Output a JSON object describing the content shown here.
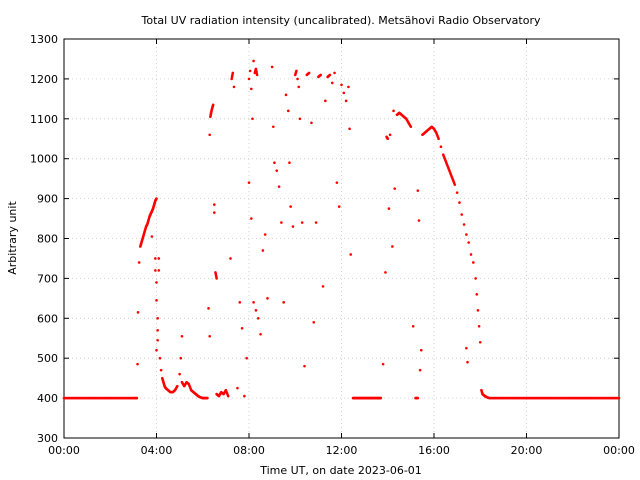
{
  "chart_data": {
    "type": "scatter",
    "title": "Total UV radiation intensity (uncalibrated). Metsähovi Radio Observatory",
    "xlabel": "Time UT, on date 2023-06-01",
    "ylabel": "Arbitrary unit",
    "xlim": [
      0,
      24
    ],
    "ylim": [
      300,
      1300
    ],
    "x_ticks": [
      0,
      4,
      8,
      12,
      16,
      20,
      24
    ],
    "x_tick_labels": [
      "00:00",
      "04:00",
      "08:00",
      "12:00",
      "16:00",
      "20:00",
      "00:00"
    ],
    "y_ticks": [
      300,
      400,
      500,
      600,
      700,
      800,
      900,
      1000,
      1100,
      1200,
      1300
    ],
    "grid": true,
    "marker_color": "#ff0000",
    "series": [
      {
        "name": "",
        "points": [
          [
            0.0,
            400
          ],
          [
            0.2,
            400
          ],
          [
            0.4,
            400
          ],
          [
            0.6,
            400
          ],
          [
            0.8,
            400
          ],
          [
            1.0,
            400
          ],
          [
            1.2,
            400
          ],
          [
            1.4,
            400
          ],
          [
            1.6,
            400
          ],
          [
            1.8,
            400
          ],
          [
            2.0,
            400
          ],
          [
            2.2,
            400
          ],
          [
            2.4,
            400
          ],
          [
            2.6,
            400
          ],
          [
            2.8,
            400
          ],
          [
            3.0,
            400
          ],
          [
            3.15,
            400
          ],
          [
            3.18,
            485
          ],
          [
            3.2,
            615
          ],
          [
            3.25,
            740
          ],
          [
            3.3,
            780
          ],
          [
            3.35,
            790
          ],
          [
            3.4,
            800
          ],
          [
            3.45,
            810
          ],
          [
            3.5,
            820
          ],
          [
            3.55,
            830
          ],
          [
            3.6,
            835
          ],
          [
            3.65,
            845
          ],
          [
            3.7,
            855
          ],
          [
            3.75,
            862
          ],
          [
            3.8,
            868
          ],
          [
            3.85,
            875
          ],
          [
            3.9,
            885
          ],
          [
            3.95,
            895
          ],
          [
            4.0,
            900
          ],
          [
            3.8,
            805
          ],
          [
            3.95,
            750
          ],
          [
            3.95,
            720
          ],
          [
            4.0,
            690
          ],
          [
            4.0,
            645
          ],
          [
            4.05,
            600
          ],
          [
            4.05,
            570
          ],
          [
            4.05,
            545
          ],
          [
            4.0,
            520
          ],
          [
            4.1,
            750
          ],
          [
            4.1,
            720
          ],
          [
            4.15,
            500
          ],
          [
            4.2,
            470
          ],
          [
            4.25,
            450
          ],
          [
            4.3,
            440
          ],
          [
            4.35,
            430
          ],
          [
            4.4,
            425
          ],
          [
            4.5,
            420
          ],
          [
            4.6,
            415
          ],
          [
            4.7,
            415
          ],
          [
            4.8,
            420
          ],
          [
            4.9,
            430
          ],
          [
            5.0,
            460
          ],
          [
            5.05,
            500
          ],
          [
            5.1,
            555
          ],
          [
            5.1,
            440
          ],
          [
            5.2,
            430
          ],
          [
            5.3,
            440
          ],
          [
            5.4,
            435
          ],
          [
            5.5,
            420
          ],
          [
            5.6,
            415
          ],
          [
            5.7,
            410
          ],
          [
            5.8,
            405
          ],
          [
            5.9,
            402
          ],
          [
            6.0,
            400
          ],
          [
            6.1,
            400
          ],
          [
            6.2,
            400
          ],
          [
            6.25,
            625
          ],
          [
            6.3,
            555
          ],
          [
            6.3,
            1060
          ],
          [
            6.33,
            1105
          ],
          [
            6.36,
            1115
          ],
          [
            6.4,
            1125
          ],
          [
            6.45,
            1135
          ],
          [
            6.5,
            885
          ],
          [
            6.5,
            865
          ],
          [
            6.55,
            715
          ],
          [
            6.6,
            700
          ],
          [
            6.6,
            410
          ],
          [
            6.7,
            405
          ],
          [
            6.8,
            415
          ],
          [
            6.9,
            410
          ],
          [
            7.0,
            420
          ],
          [
            7.1,
            405
          ],
          [
            7.2,
            750
          ],
          [
            7.25,
            1200
          ],
          [
            7.3,
            1215
          ],
          [
            7.35,
            1180
          ],
          [
            7.5,
            425
          ],
          [
            7.6,
            640
          ],
          [
            7.7,
            575
          ],
          [
            7.8,
            405
          ],
          [
            7.9,
            500
          ],
          [
            8.0,
            1200
          ],
          [
            8.05,
            1220
          ],
          [
            8.1,
            1175
          ],
          [
            8.15,
            1100
          ],
          [
            8.2,
            1245
          ],
          [
            8.25,
            1215
          ],
          [
            8.3,
            1225
          ],
          [
            8.35,
            1210
          ],
          [
            8.0,
            940
          ],
          [
            8.1,
            850
          ],
          [
            8.2,
            640
          ],
          [
            8.3,
            620
          ],
          [
            8.4,
            600
          ],
          [
            8.5,
            560
          ],
          [
            8.6,
            770
          ],
          [
            8.7,
            810
          ],
          [
            8.8,
            650
          ],
          [
            9.0,
            1230
          ],
          [
            9.05,
            1080
          ],
          [
            9.1,
            990
          ],
          [
            9.2,
            970
          ],
          [
            9.3,
            930
          ],
          [
            9.4,
            840
          ],
          [
            9.5,
            640
          ],
          [
            9.6,
            1160
          ],
          [
            9.7,
            1120
          ],
          [
            9.75,
            990
          ],
          [
            9.8,
            880
          ],
          [
            9.9,
            830
          ],
          [
            10.0,
            1210
          ],
          [
            10.05,
            1220
          ],
          [
            10.1,
            1200
          ],
          [
            10.15,
            1180
          ],
          [
            10.2,
            1100
          ],
          [
            10.3,
            840
          ],
          [
            10.4,
            480
          ],
          [
            10.5,
            1210
          ],
          [
            10.6,
            1215
          ],
          [
            10.7,
            1090
          ],
          [
            10.8,
            590
          ],
          [
            10.9,
            840
          ],
          [
            11.0,
            1205
          ],
          [
            11.1,
            1210
          ],
          [
            11.2,
            680
          ],
          [
            11.3,
            1145
          ],
          [
            11.4,
            1205
          ],
          [
            11.5,
            1210
          ],
          [
            11.6,
            1190
          ],
          [
            11.7,
            1215
          ],
          [
            11.8,
            940
          ],
          [
            11.9,
            880
          ],
          [
            12.0,
            1185
          ],
          [
            12.1,
            1165
          ],
          [
            12.2,
            1145
          ],
          [
            12.3,
            1180
          ],
          [
            12.35,
            1075
          ],
          [
            12.4,
            760
          ],
          [
            12.5,
            400
          ],
          [
            12.6,
            400
          ],
          [
            12.7,
            400
          ],
          [
            12.8,
            400
          ],
          [
            12.9,
            400
          ],
          [
            13.0,
            400
          ],
          [
            13.1,
            400
          ],
          [
            13.2,
            400
          ],
          [
            13.3,
            400
          ],
          [
            13.4,
            400
          ],
          [
            13.5,
            400
          ],
          [
            13.6,
            400
          ],
          [
            13.7,
            400
          ],
          [
            13.8,
            485
          ],
          [
            13.9,
            715
          ],
          [
            13.95,
            1055
          ],
          [
            14.0,
            1050
          ],
          [
            14.05,
            875
          ],
          [
            14.1,
            1060
          ],
          [
            14.2,
            780
          ],
          [
            14.25,
            1120
          ],
          [
            14.3,
            925
          ],
          [
            14.4,
            1110
          ],
          [
            14.5,
            1115
          ],
          [
            14.6,
            1110
          ],
          [
            14.7,
            1105
          ],
          [
            14.8,
            1100
          ],
          [
            14.9,
            1090
          ],
          [
            15.0,
            1080
          ],
          [
            15.1,
            580
          ],
          [
            15.3,
            920
          ],
          [
            15.35,
            845
          ],
          [
            15.4,
            470
          ],
          [
            15.45,
            520
          ],
          [
            15.2,
            400
          ],
          [
            15.3,
            400
          ],
          [
            15.5,
            1060
          ],
          [
            15.6,
            1065
          ],
          [
            15.7,
            1070
          ],
          [
            15.8,
            1075
          ],
          [
            15.9,
            1080
          ],
          [
            16.0,
            1075
          ],
          [
            16.1,
            1065
          ],
          [
            16.2,
            1050
          ],
          [
            16.3,
            1030
          ],
          [
            16.4,
            1010
          ],
          [
            16.5,
            995
          ],
          [
            16.6,
            980
          ],
          [
            16.7,
            965
          ],
          [
            16.8,
            950
          ],
          [
            16.9,
            935
          ],
          [
            17.0,
            915
          ],
          [
            17.1,
            890
          ],
          [
            17.2,
            860
          ],
          [
            17.3,
            835
          ],
          [
            17.4,
            810
          ],
          [
            17.5,
            790
          ],
          [
            17.6,
            760
          ],
          [
            17.7,
            740
          ],
          [
            17.8,
            700
          ],
          [
            17.85,
            660
          ],
          [
            17.9,
            620
          ],
          [
            17.95,
            580
          ],
          [
            18.0,
            540
          ],
          [
            17.4,
            525
          ],
          [
            17.45,
            490
          ],
          [
            18.05,
            420
          ],
          [
            18.1,
            410
          ],
          [
            18.2,
            405
          ],
          [
            18.3,
            402
          ],
          [
            18.4,
            400
          ],
          [
            18.6,
            400
          ],
          [
            18.8,
            400
          ],
          [
            19.0,
            400
          ],
          [
            19.2,
            400
          ],
          [
            19.4,
            400
          ],
          [
            19.6,
            400
          ],
          [
            19.8,
            400
          ],
          [
            20.0,
            400
          ],
          [
            20.2,
            400
          ],
          [
            20.4,
            400
          ],
          [
            20.6,
            400
          ],
          [
            20.8,
            400
          ],
          [
            21.0,
            400
          ],
          [
            21.2,
            400
          ],
          [
            21.4,
            400
          ],
          [
            21.6,
            400
          ],
          [
            21.8,
            400
          ],
          [
            22.0,
            400
          ],
          [
            22.2,
            400
          ],
          [
            22.4,
            400
          ],
          [
            22.6,
            400
          ],
          [
            22.8,
            400
          ],
          [
            23.0,
            400
          ],
          [
            23.2,
            400
          ],
          [
            23.4,
            400
          ],
          [
            23.6,
            400
          ],
          [
            23.8,
            400
          ],
          [
            24.0,
            400
          ]
        ]
      }
    ]
  }
}
